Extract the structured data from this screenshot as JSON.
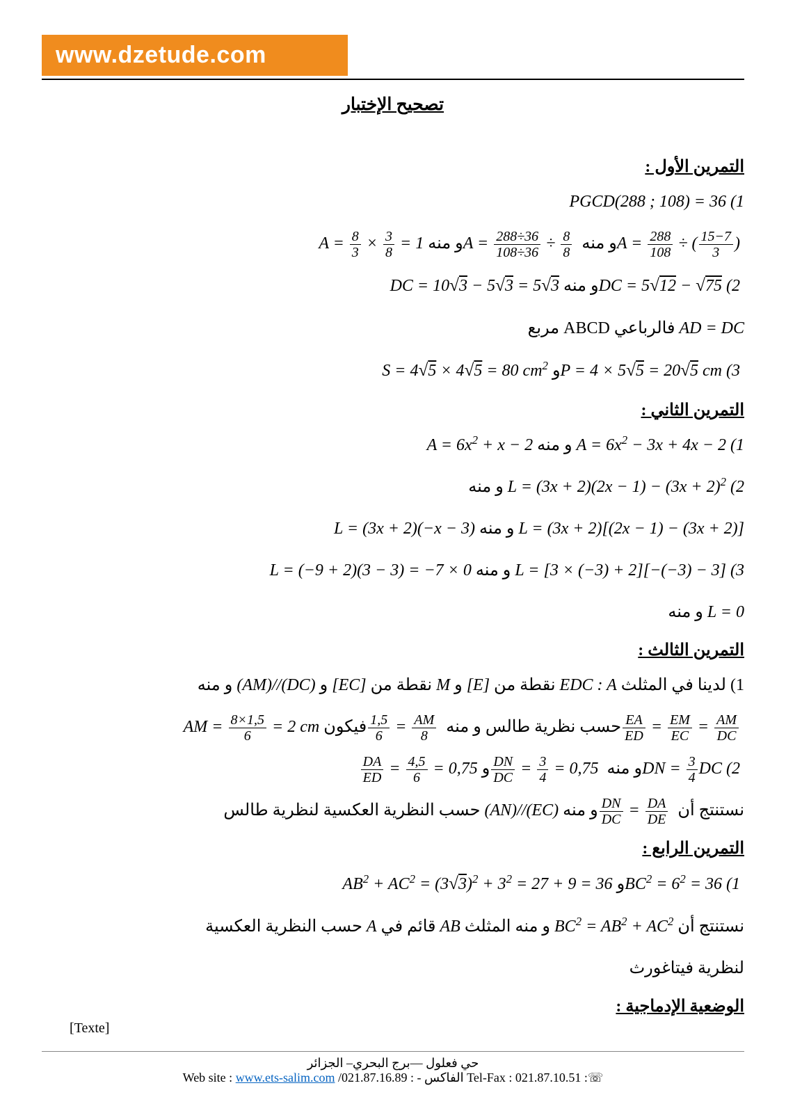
{
  "banner": "www.dzetude.com",
  "title": "تصحيح الإختبار",
  "ex1_head": "التمرين الأول :",
  "ex1_l1": "PGCD(288 ; 108) = 36 (1",
  "ex1_l2_a": "A = ",
  "ex1_l2_f1n": "8",
  "ex1_l2_f1d": "3",
  "ex1_l2_times": " × ",
  "ex1_l2_f2n": "3",
  "ex1_l2_f2d": "8",
  "ex1_l2_eq1": " = 1",
  "ex1_l2_wm1": "   و منه   ",
  "ex1_l2_b": "A = ",
  "ex1_l2_f3n": "288÷36",
  "ex1_l2_f3d": "108÷36",
  "ex1_l2_div": " ÷ ",
  "ex1_l2_f4n": "8",
  "ex1_l2_f4d": "8",
  "ex1_l2_wm2": "   و منه   ",
  "ex1_l2_c": "A = ",
  "ex1_l2_f5n": "288",
  "ex1_l2_f5d": "108",
  "ex1_l2_div2": " ÷ (",
  "ex1_l2_f6n": "15−7",
  "ex1_l2_f6d": "3",
  "ex1_l2_close": ")",
  "ex1_l3_a": "DC = 10",
  "ex1_l3_s3a": "3",
  "ex1_l3_m1": " − 5",
  "ex1_l3_s3b": "3",
  "ex1_l3_eq": " = 5",
  "ex1_l3_s3c": "3",
  "ex1_l3_wm": "   و منه   ",
  "ex1_l3_b": "DC = 5",
  "ex1_l3_s12": "12",
  "ex1_l3_m2": " − ",
  "ex1_l3_s75": "75",
  "ex1_l3_n": " (2",
  "ex1_l4": " فالرباعي ABCD مربع",
  "ex1_l4_pre": "AD = DC",
  "ex1_l5_a": "S = 4",
  "ex1_l5_s5a": "5",
  "ex1_l5_x": " × 4",
  "ex1_l5_s5b": "5",
  "ex1_l5_eq": " = 80 cm",
  "ex1_l5_sup": "2",
  "ex1_l5_w": "   و   ",
  "ex1_l5_b": "P = 4 × 5",
  "ex1_l5_s5c": "5",
  "ex1_l5_eq2": " = 20",
  "ex1_l5_s5d": "5",
  "ex1_l5_cm": " cm  (3",
  "ex2_head": "التمرين الثاني :",
  "ex2_l1_a": "A = 6x",
  "ex2_l1_b": " + x − 2",
  "ex2_l1_wm": "   و منه   ",
  "ex2_l1_c": "A = 6x",
  "ex2_l1_d": " − 3x + 4x − 2 (1",
  "ex2_l2_wm": "   و منه   ",
  "ex2_l2": "L = (3x + 2)(2x − 1) − (3x + 2)",
  "ex2_l2_n": " (2",
  "ex2_l3_a": "L = (3x + 2)(−x − 3)",
  "ex2_l3_wm": "   و منه   ",
  "ex2_l3_b": "L = (3x + 2)[(2x − 1) − (3x + 2)]",
  "ex2_l4_a": "L = (−9 + 2)(3 − 3) = −7 × 0",
  "ex2_l4_wm": "   و منه   ",
  "ex2_l4_b": "L = [3 × (−3) + 2][−(−3) − 3] (3",
  "ex2_l5_wm": "و منه   ",
  "ex2_l5": "L = 0",
  "ex3_head": "التمرين الثالث :",
  "ex3_l1_p1": "1) لدينا في المثلث ",
  "ex3_l1_edc": "EDC : A",
  "ex3_l1_p2": " نقطة من ",
  "ex3_l1_e": "[E]",
  "ex3_l1_p3": " و ",
  "ex3_l1_m": "M",
  "ex3_l1_p4": " نقطة من ",
  "ex3_l1_ec": "[EC]",
  "ex3_l1_p5": " و ",
  "ex3_l1_par": "(AM)//(DC)",
  "ex3_l1_p6": " و منه",
  "ex3_l2_a": "AM = ",
  "ex3_l2_f1n": "8×1,5",
  "ex3_l2_f1d": "6",
  "ex3_l2_eq": " = 2 cm",
  "ex3_l2_fy": "    فيكون ",
  "ex3_l2_f2n": "1,5",
  "ex3_l2_f2d": "6",
  "ex3_l2_eq2": " = ",
  "ex3_l2_f3n": "AM",
  "ex3_l2_f3d": "8",
  "ex3_l2_wm": "   و منه   ",
  "ex3_l2_txt": " حسب نظرية طالس ",
  "ex3_l2_f4n": "EA",
  "ex3_l2_f4d": "ED",
  "ex3_l2_f5n": "EM",
  "ex3_l2_f5d": "EC",
  "ex3_l2_f6n": "AM",
  "ex3_l2_f6d": "DC",
  "ex3_l3_f1n": "DA",
  "ex3_l3_f1d": "ED",
  "ex3_l3_eq1": " = ",
  "ex3_l3_f2n": "4,5",
  "ex3_l3_f2d": "6",
  "ex3_l3_eq2": " = 0,75",
  "ex3_l3_w": "   و   ",
  "ex3_l3_f3n": "DN",
  "ex3_l3_f3d": "DC",
  "ex3_l3_eq3": " = ",
  "ex3_l3_f4n": "3",
  "ex3_l3_f4d": "4",
  "ex3_l3_eq4": " = 0,75",
  "ex3_l3_wm": "   و منه   ",
  "ex3_l3_dn": "DN = ",
  "ex3_l3_f5n": "3",
  "ex3_l3_f5d": "4",
  "ex3_l3_dc": "DC (2",
  "ex3_l4_p1": "نستنتج أن  ",
  "ex3_l4_f1n": "DN",
  "ex3_l4_f1d": "DC",
  "ex3_l4_eq": " = ",
  "ex3_l4_f2n": "DA",
  "ex3_l4_f2d": "DE",
  "ex3_l4_wm": "  و منه  ",
  "ex3_l4_par": "(AN)//(EC)",
  "ex3_l4_p2": "  حسب النظرية العكسية لنظرية طالس",
  "ex4_head": "التمرين الرابع :",
  "ex4_l1_a": "AB",
  "ex4_l1_b": " + AC",
  "ex4_l1_c": " = (3",
  "ex4_l1_s3": "3",
  "ex4_l1_d": ")",
  "ex4_l1_e": " + 3",
  "ex4_l1_f": " = 27 + 9 = 36",
  "ex4_l1_w": "     و     ",
  "ex4_l1_g": "BC",
  "ex4_l1_h": " = 6",
  "ex4_l1_i": " = 36 (1",
  "ex4_l2_p1": "نستنتج أن   ",
  "ex4_l2_bc": "BC",
  "ex4_l2_eq": " = AB",
  "ex4_l2_ac": " + AC",
  "ex4_l2_p2": "   و منه المثلث  ",
  "ex4_l2_ab": "AB",
  "ex4_l2_p3": "  قائم في ",
  "ex4_l2_a": "A",
  "ex4_l2_p4": " حسب النظرية العكسية",
  "ex4_l3": "لنظرية فيتاغورث",
  "integ_head": "الوضعية الإدماجية :",
  "texte": "[Texte]",
  "foot_ar": "حي فعلول —برج البحري– الجزائر",
  "foot_ws": "Web site : ",
  "foot_url": "www.ets-salim.com",
  "foot_mid": " /021.87.16.89 : ",
  "foot_fax_ar": "- الفاكس",
  "foot_tf": " Tel-Fax : 021.87.10.51 :☏"
}
